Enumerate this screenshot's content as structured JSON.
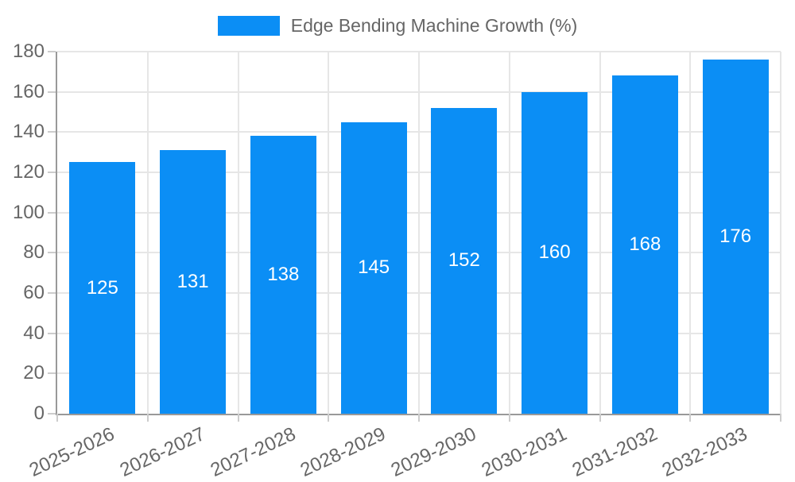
{
  "legend": {
    "label": "Edge Bending Machine Growth (%)"
  },
  "chart_data": {
    "type": "bar",
    "title": "",
    "xlabel": "",
    "ylabel": "",
    "categories": [
      "2025-2026",
      "2026-2027",
      "2027-2028",
      "2028-2029",
      "2029-2030",
      "2030-2031",
      "2031-2032",
      "2032-2033"
    ],
    "series": [
      {
        "name": "Edge Bending Machine Growth (%)",
        "values": [
          125,
          131,
          138,
          145,
          152,
          160,
          168,
          176
        ]
      }
    ],
    "value_labels_shown": true,
    "ylim": [
      0,
      180
    ],
    "yticks": [
      0,
      20,
      40,
      60,
      80,
      100,
      120,
      140,
      160,
      180
    ],
    "grid": true,
    "legend_position": "top-center",
    "x_label_rotation_deg": -25,
    "colors": {
      "bar": "#0b8ef5",
      "axis_text": "#666666",
      "grid_line": "#e6e6e6",
      "axis_line": "#999999",
      "tick_mark": "#cccccc",
      "value_label": "#ffffff"
    }
  }
}
